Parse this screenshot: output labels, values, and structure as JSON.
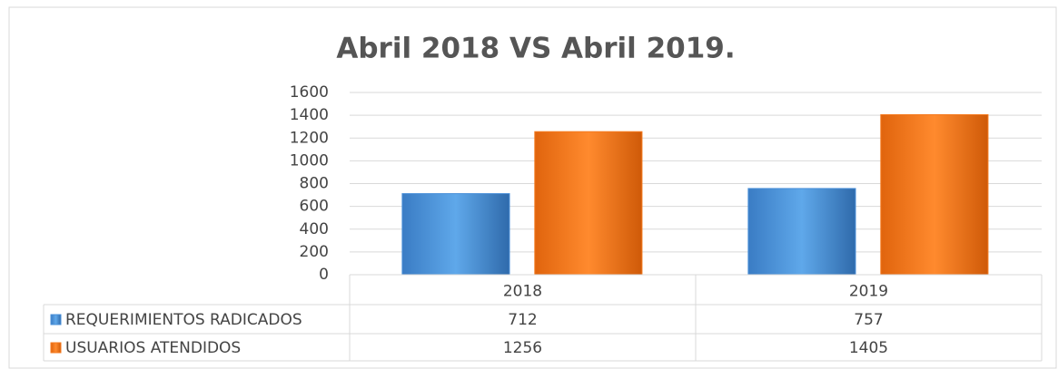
{
  "chart_data": {
    "type": "bar",
    "title": "Abril 2018 VS Abril 2019.",
    "categories": [
      "2018",
      "2019"
    ],
    "series": [
      {
        "name": "REQUERIMIENTOS RADICADOS",
        "color": "#4a90d9",
        "values": [
          712,
          757
        ]
      },
      {
        "name": "USUARIOS ATENDIDOS",
        "color": "#f57a1e",
        "values": [
          1256,
          1405
        ]
      }
    ],
    "ylim": [
      0,
      1600
    ],
    "yticks": [
      0,
      200,
      400,
      600,
      800,
      1000,
      1200,
      1400,
      1600
    ],
    "grid": true,
    "data_table": true
  }
}
